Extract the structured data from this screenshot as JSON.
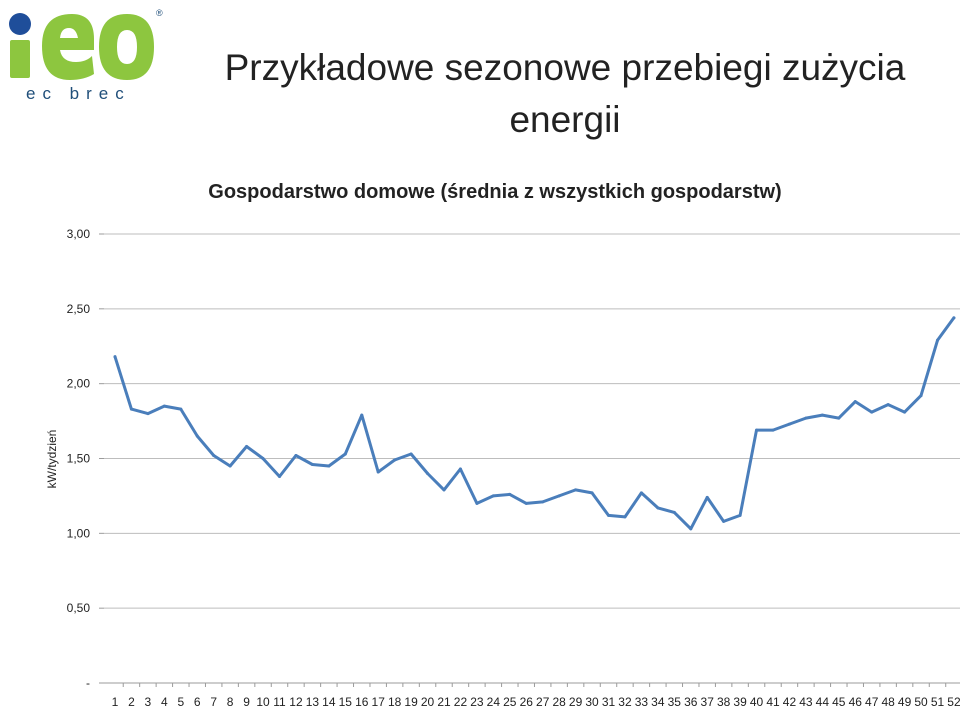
{
  "logo": {
    "text": "iEO",
    "sub": "ec brec",
    "mark": "®",
    "colors": {
      "green": "#8dc63f",
      "blue": "#1f4e9a",
      "sub": "#1f4e79"
    }
  },
  "slide": {
    "title": "Przykładowe sezonowe przebiegi zużycia energii"
  },
  "chart_data": {
    "type": "line",
    "title": "Gospodarstwo domowe (średnia z wszystkich gospodarstw)",
    "xlabel": "",
    "ylabel": "kW/tydzień",
    "ylim": [
      0,
      3
    ],
    "y_ticks": [
      0,
      0.5,
      1,
      1.5,
      2,
      2.5,
      3
    ],
    "y_tick_labels": [
      "-",
      "0,50",
      "1,00",
      "1,50",
      "2,00",
      "2,50",
      "3,00"
    ],
    "grid": true,
    "legend": "none",
    "line_color": "#4a7ebb",
    "categories": [
      "1",
      "2",
      "3",
      "4",
      "5",
      "6",
      "7",
      "8",
      "9",
      "10",
      "11",
      "12",
      "13",
      "14",
      "15",
      "16",
      "17",
      "18",
      "19",
      "20",
      "21",
      "22",
      "23",
      "24",
      "25",
      "26",
      "27",
      "28",
      "29",
      "30",
      "31",
      "32",
      "33",
      "34",
      "35",
      "36",
      "37",
      "38",
      "39",
      "40",
      "41",
      "42",
      "43",
      "44",
      "45",
      "46",
      "47",
      "48",
      "49",
      "50",
      "51",
      "52"
    ],
    "values": [
      2.18,
      1.83,
      1.8,
      1.85,
      1.83,
      1.65,
      1.52,
      1.45,
      1.58,
      1.5,
      1.38,
      1.52,
      1.46,
      1.45,
      1.53,
      1.79,
      1.41,
      1.49,
      1.53,
      1.4,
      1.29,
      1.43,
      1.2,
      1.25,
      1.26,
      1.2,
      1.21,
      1.25,
      1.29,
      1.27,
      1.12,
      1.11,
      1.27,
      1.17,
      1.14,
      1.03,
      1.24,
      1.08,
      1.12,
      1.69,
      1.69,
      1.73,
      1.77,
      1.79,
      1.77,
      1.88,
      1.81,
      1.86,
      1.81,
      1.92,
      2.29,
      2.44
    ]
  }
}
